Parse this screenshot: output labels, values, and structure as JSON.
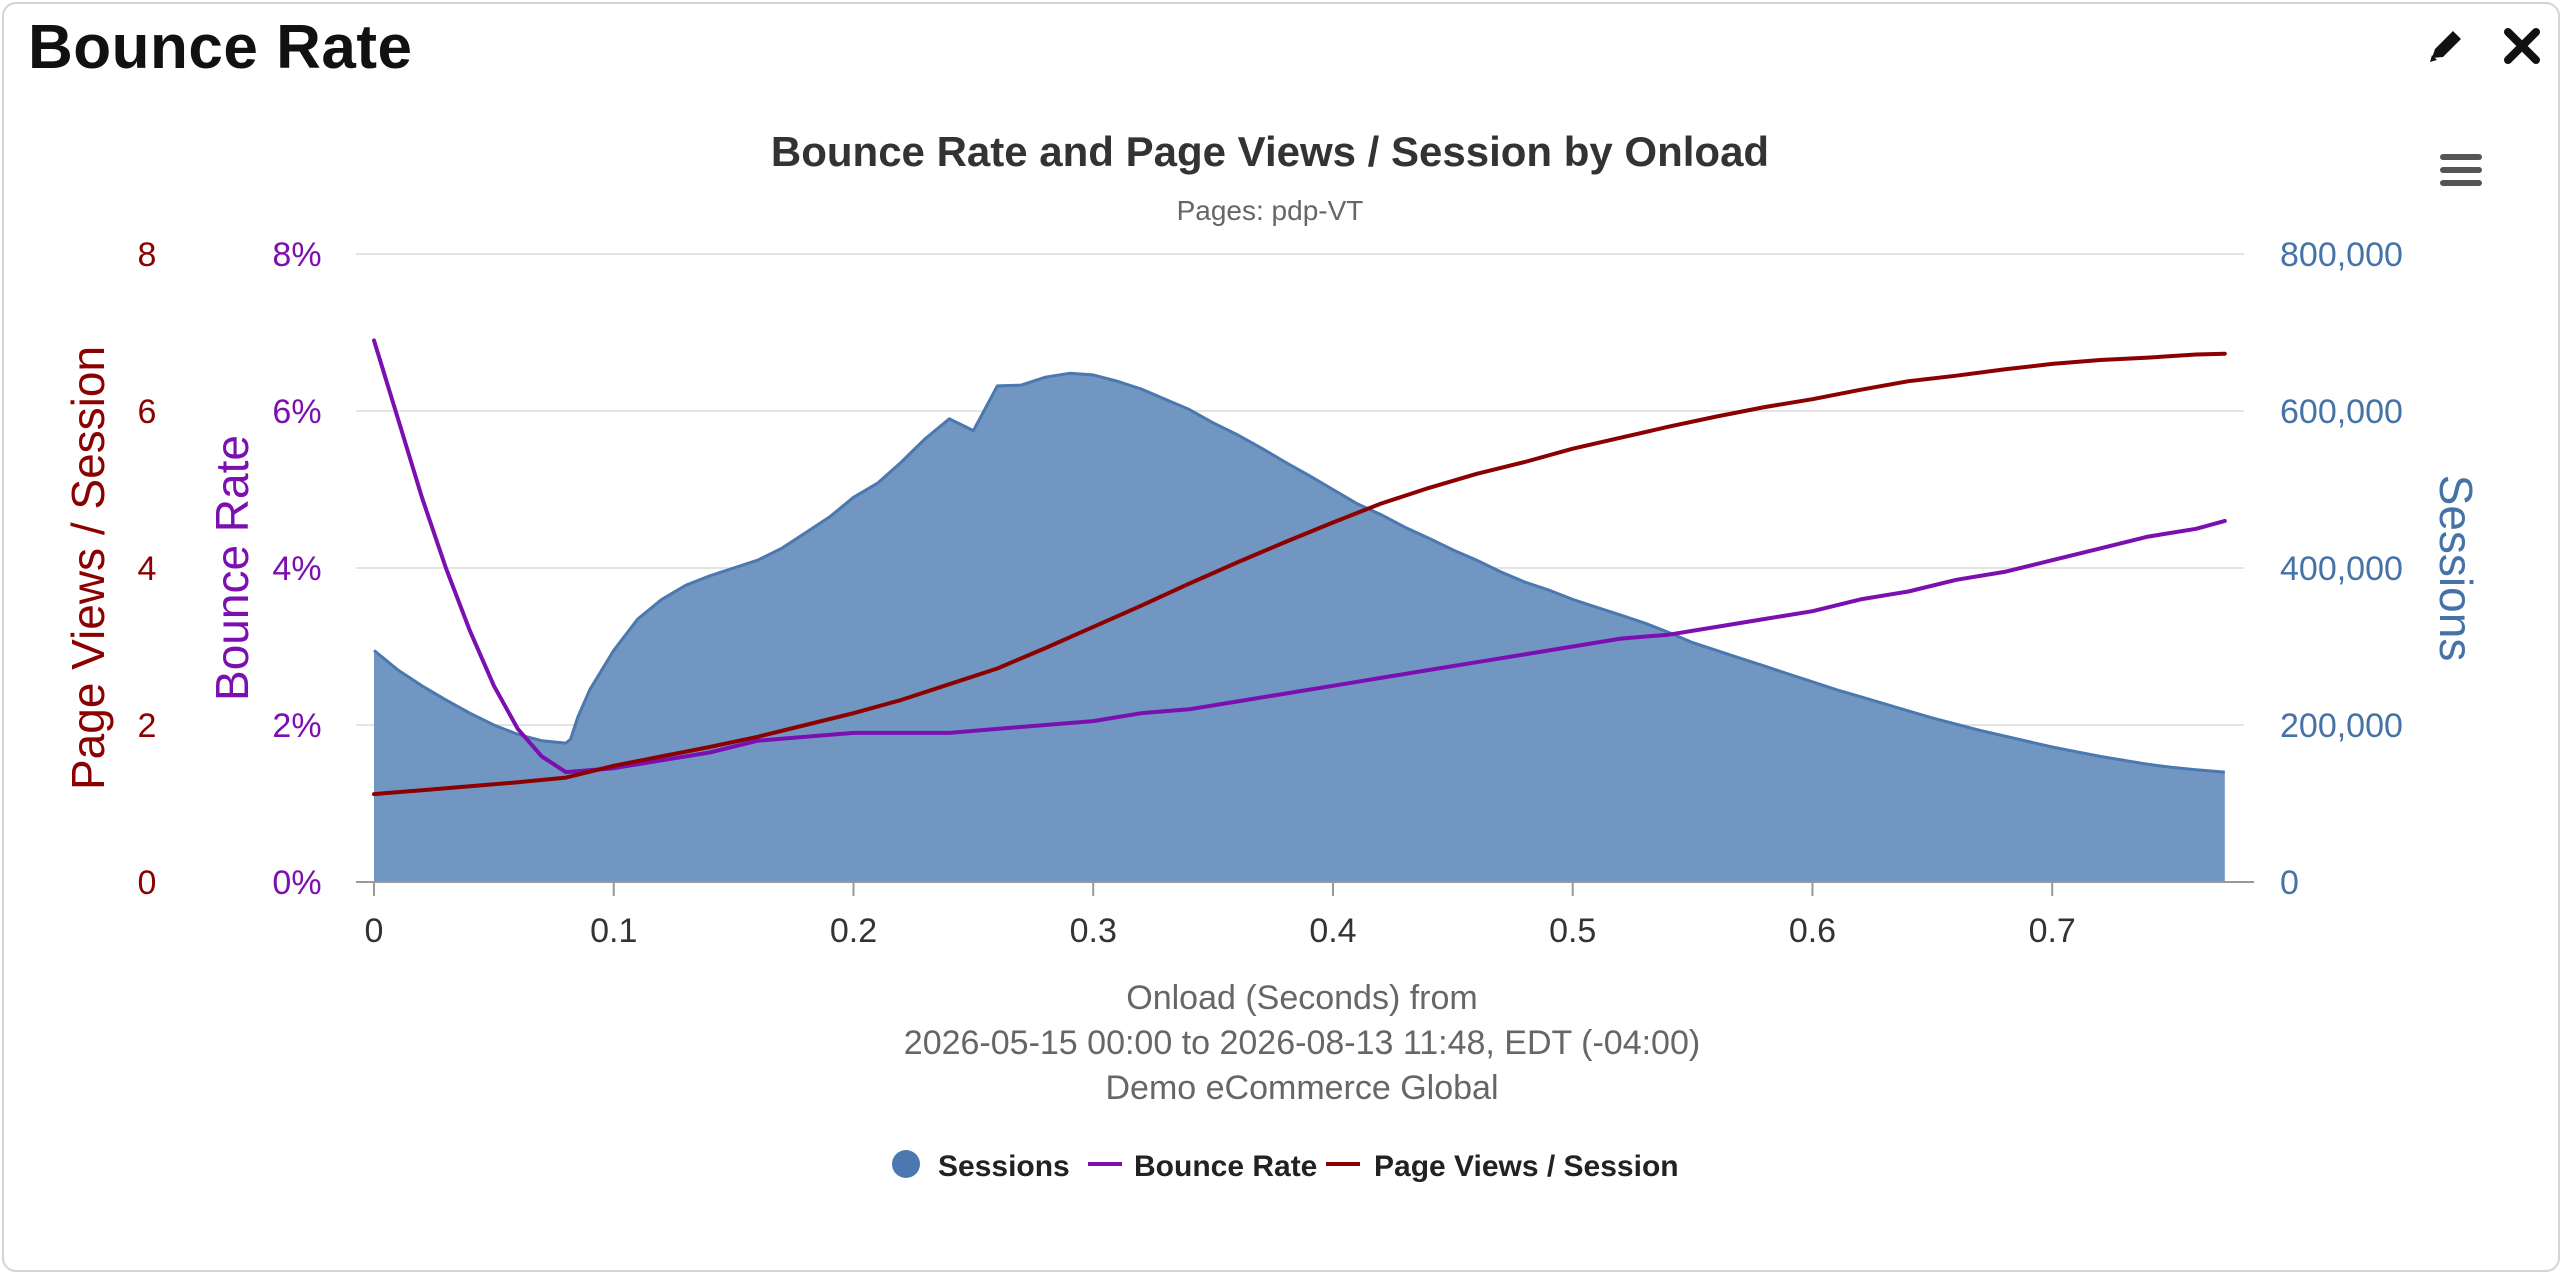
{
  "panel": {
    "title": "Bounce Rate",
    "edit_icon": "pencil-icon",
    "close_icon": "close-icon"
  },
  "chart_menu_icon": "hamburger-menu-icon",
  "chart_data": {
    "type": "area",
    "title": "Bounce Rate and Page Views / Session by Onload",
    "subtitle": "Pages: pdp-VT",
    "xlabel_lines": [
      "Onload (Seconds) from",
      "2026-05-15 00:00 to 2026-08-13 11:48, EDT (-04:00)",
      "Demo eCommerce Global"
    ],
    "x_ticks": [
      "0",
      "0.1",
      "0.2",
      "0.3",
      "0.4",
      "0.5",
      "0.6",
      "0.7"
    ],
    "xlim": [
      0,
      0.78
    ],
    "grid": true,
    "legend_position": "bottom-center",
    "axes": [
      {
        "id": "pvs",
        "label": "Page Views / Session",
        "side": "left-outer",
        "color": "#8b0000",
        "range": [
          0,
          8
        ],
        "ticks": [
          "0",
          "2",
          "4",
          "6",
          "8"
        ]
      },
      {
        "id": "bounce",
        "label": "Bounce Rate",
        "side": "left-inner",
        "color": "#7b0fb0",
        "range": [
          0,
          8
        ],
        "ticks": [
          "0%",
          "2%",
          "4%",
          "6%",
          "8%"
        ]
      },
      {
        "id": "sessions",
        "label": "Sessions",
        "side": "right",
        "color": "#4572a7",
        "range": [
          0,
          800000
        ],
        "ticks": [
          "0",
          "200,000",
          "400,000",
          "600,000",
          "800,000"
        ]
      }
    ],
    "series": [
      {
        "name": "Sessions",
        "type": "area",
        "axis": "sessions",
        "color": "#4a78af",
        "fill": "#7096c1",
        "legend_symbol": "circle",
        "points": [
          [
            0,
            295000
          ],
          [
            0.01,
            270000
          ],
          [
            0.02,
            250000
          ],
          [
            0.03,
            232000
          ],
          [
            0.04,
            215000
          ],
          [
            0.05,
            200000
          ],
          [
            0.06,
            188000
          ],
          [
            0.07,
            180000
          ],
          [
            0.08,
            177000
          ],
          [
            0.082,
            182000
          ],
          [
            0.085,
            210000
          ],
          [
            0.09,
            245000
          ],
          [
            0.1,
            295000
          ],
          [
            0.11,
            335000
          ],
          [
            0.12,
            360000
          ],
          [
            0.13,
            378000
          ],
          [
            0.14,
            390000
          ],
          [
            0.15,
            400000
          ],
          [
            0.16,
            410000
          ],
          [
            0.17,
            425000
          ],
          [
            0.18,
            445000
          ],
          [
            0.19,
            465000
          ],
          [
            0.2,
            490000
          ],
          [
            0.21,
            508000
          ],
          [
            0.22,
            535000
          ],
          [
            0.23,
            565000
          ],
          [
            0.24,
            590000
          ],
          [
            0.25,
            575000
          ],
          [
            0.26,
            632000
          ],
          [
            0.27,
            633000
          ],
          [
            0.28,
            643000
          ],
          [
            0.29,
            648000
          ],
          [
            0.3,
            646000
          ],
          [
            0.31,
            638000
          ],
          [
            0.32,
            628000
          ],
          [
            0.33,
            615000
          ],
          [
            0.34,
            602000
          ],
          [
            0.35,
            585000
          ],
          [
            0.36,
            570000
          ],
          [
            0.37,
            553000
          ],
          [
            0.38,
            535000
          ],
          [
            0.39,
            518000
          ],
          [
            0.4,
            500000
          ],
          [
            0.41,
            482000
          ],
          [
            0.42,
            468000
          ],
          [
            0.43,
            452000
          ],
          [
            0.44,
            438000
          ],
          [
            0.45,
            423000
          ],
          [
            0.46,
            410000
          ],
          [
            0.47,
            395000
          ],
          [
            0.48,
            382000
          ],
          [
            0.49,
            372000
          ],
          [
            0.5,
            360000
          ],
          [
            0.51,
            350000
          ],
          [
            0.52,
            340000
          ],
          [
            0.53,
            330000
          ],
          [
            0.54,
            318000
          ],
          [
            0.55,
            305000
          ],
          [
            0.56,
            295000
          ],
          [
            0.57,
            285000
          ],
          [
            0.58,
            275000
          ],
          [
            0.59,
            265000
          ],
          [
            0.6,
            255000
          ],
          [
            0.61,
            245000
          ],
          [
            0.62,
            236000
          ],
          [
            0.63,
            227000
          ],
          [
            0.64,
            218000
          ],
          [
            0.65,
            209000
          ],
          [
            0.66,
            201000
          ],
          [
            0.67,
            193000
          ],
          [
            0.68,
            186000
          ],
          [
            0.69,
            179000
          ],
          [
            0.7,
            172000
          ],
          [
            0.71,
            166000
          ],
          [
            0.72,
            160000
          ],
          [
            0.73,
            155000
          ],
          [
            0.74,
            150000
          ],
          [
            0.75,
            146000
          ],
          [
            0.76,
            143000
          ],
          [
            0.772,
            140000
          ]
        ]
      },
      {
        "name": "Bounce Rate",
        "type": "line",
        "axis": "bounce",
        "color": "#7b0fb0",
        "legend_symbol": "line",
        "points": [
          [
            0,
            6.9
          ],
          [
            0.01,
            5.9
          ],
          [
            0.02,
            4.9
          ],
          [
            0.03,
            4.0
          ],
          [
            0.04,
            3.2
          ],
          [
            0.05,
            2.5
          ],
          [
            0.06,
            1.95
          ],
          [
            0.07,
            1.6
          ],
          [
            0.08,
            1.4
          ],
          [
            0.1,
            1.45
          ],
          [
            0.12,
            1.55
          ],
          [
            0.14,
            1.65
          ],
          [
            0.16,
            1.8
          ],
          [
            0.18,
            1.85
          ],
          [
            0.2,
            1.9
          ],
          [
            0.22,
            1.9
          ],
          [
            0.24,
            1.9
          ],
          [
            0.26,
            1.95
          ],
          [
            0.28,
            2.0
          ],
          [
            0.3,
            2.05
          ],
          [
            0.32,
            2.15
          ],
          [
            0.34,
            2.2
          ],
          [
            0.36,
            2.3
          ],
          [
            0.38,
            2.4
          ],
          [
            0.4,
            2.5
          ],
          [
            0.42,
            2.6
          ],
          [
            0.44,
            2.7
          ],
          [
            0.46,
            2.8
          ],
          [
            0.48,
            2.9
          ],
          [
            0.5,
            3.0
          ],
          [
            0.52,
            3.1
          ],
          [
            0.54,
            3.15
          ],
          [
            0.56,
            3.25
          ],
          [
            0.58,
            3.35
          ],
          [
            0.6,
            3.45
          ],
          [
            0.62,
            3.6
          ],
          [
            0.64,
            3.7
          ],
          [
            0.66,
            3.85
          ],
          [
            0.68,
            3.95
          ],
          [
            0.7,
            4.1
          ],
          [
            0.72,
            4.25
          ],
          [
            0.74,
            4.4
          ],
          [
            0.76,
            4.5
          ],
          [
            0.772,
            4.6
          ]
        ]
      },
      {
        "name": "Page Views / Session",
        "type": "line",
        "axis": "pvs",
        "color": "#8b0000",
        "legend_symbol": "line",
        "points": [
          [
            0,
            1.12
          ],
          [
            0.02,
            1.17
          ],
          [
            0.04,
            1.22
          ],
          [
            0.06,
            1.27
          ],
          [
            0.08,
            1.33
          ],
          [
            0.1,
            1.48
          ],
          [
            0.12,
            1.6
          ],
          [
            0.14,
            1.72
          ],
          [
            0.16,
            1.85
          ],
          [
            0.18,
            2.0
          ],
          [
            0.2,
            2.15
          ],
          [
            0.22,
            2.32
          ],
          [
            0.24,
            2.52
          ],
          [
            0.26,
            2.72
          ],
          [
            0.28,
            2.98
          ],
          [
            0.3,
            3.25
          ],
          [
            0.32,
            3.52
          ],
          [
            0.34,
            3.8
          ],
          [
            0.36,
            4.07
          ],
          [
            0.38,
            4.33
          ],
          [
            0.4,
            4.58
          ],
          [
            0.42,
            4.82
          ],
          [
            0.44,
            5.02
          ],
          [
            0.46,
            5.2
          ],
          [
            0.48,
            5.35
          ],
          [
            0.5,
            5.52
          ],
          [
            0.52,
            5.66
          ],
          [
            0.54,
            5.8
          ],
          [
            0.56,
            5.93
          ],
          [
            0.58,
            6.05
          ],
          [
            0.6,
            6.15
          ],
          [
            0.62,
            6.27
          ],
          [
            0.64,
            6.38
          ],
          [
            0.66,
            6.45
          ],
          [
            0.68,
            6.53
          ],
          [
            0.7,
            6.6
          ],
          [
            0.72,
            6.65
          ],
          [
            0.74,
            6.68
          ],
          [
            0.76,
            6.72
          ],
          [
            0.772,
            6.73
          ]
        ]
      }
    ]
  }
}
